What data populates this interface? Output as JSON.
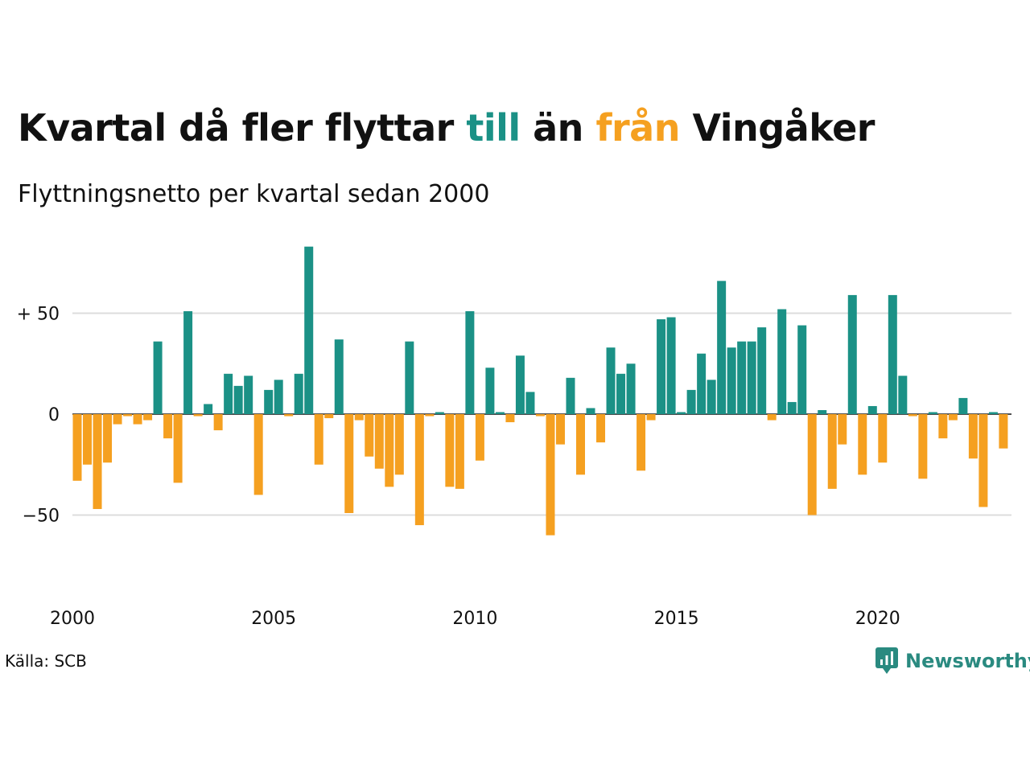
{
  "title": {
    "part1": "Kvartal då fler flyttar ",
    "part2": "till",
    "part3": " än ",
    "part4": "från",
    "part5": " Vingåker"
  },
  "subtitle": "Flyttningsnetto per kvartal sedan 2000",
  "source": "Källa: SCB",
  "logo": {
    "text": "Newsworthy",
    "icon": "newsworthy-logo-icon"
  },
  "colors": {
    "positive": "#1b9186",
    "negative": "#f5a020",
    "grid": "#dddddd",
    "logo": "#2a8a80"
  },
  "chart_data": {
    "type": "bar",
    "title": "Kvartal då fler flyttar till än från Vingåker",
    "subtitle": "Flyttningsnetto per kvartal sedan 2000",
    "x_start_year": 2000,
    "periods_per_year": 4,
    "x_tick_labels": [
      "2000",
      "2005",
      "2010",
      "2015",
      "2020"
    ],
    "y_ticks": [
      {
        "value": 50,
        "label": "+ 50"
      },
      {
        "value": 0,
        "label": "0"
      },
      {
        "value": -50,
        "label": "−50"
      }
    ],
    "ylim": [
      -73,
      83
    ],
    "grid": true,
    "values": [
      -33,
      -25,
      -47,
      -24,
      -5,
      -1,
      -5,
      -3,
      36,
      -12,
      -34,
      51,
      -1,
      5,
      -8,
      20,
      14,
      19,
      -40,
      12,
      17,
      -1,
      20,
      83,
      -25,
      -2,
      37,
      -49,
      -3,
      -21,
      -27,
      -36,
      -30,
      36,
      -55,
      -1,
      1,
      -36,
      -37,
      51,
      -23,
      23,
      1,
      -4,
      29,
      11,
      -1,
      -60,
      -15,
      18,
      -30,
      3,
      -14,
      33,
      20,
      25,
      -28,
      -3,
      47,
      48,
      1,
      12,
      30,
      17,
      66,
      33,
      36,
      36,
      43,
      -3,
      52,
      6,
      44,
      -50,
      2,
      -37,
      -15,
      59,
      -30,
      4,
      -24,
      59,
      19,
      -1,
      -32,
      1,
      -12,
      -3,
      8,
      -22,
      -46,
      1,
      -17
    ]
  }
}
